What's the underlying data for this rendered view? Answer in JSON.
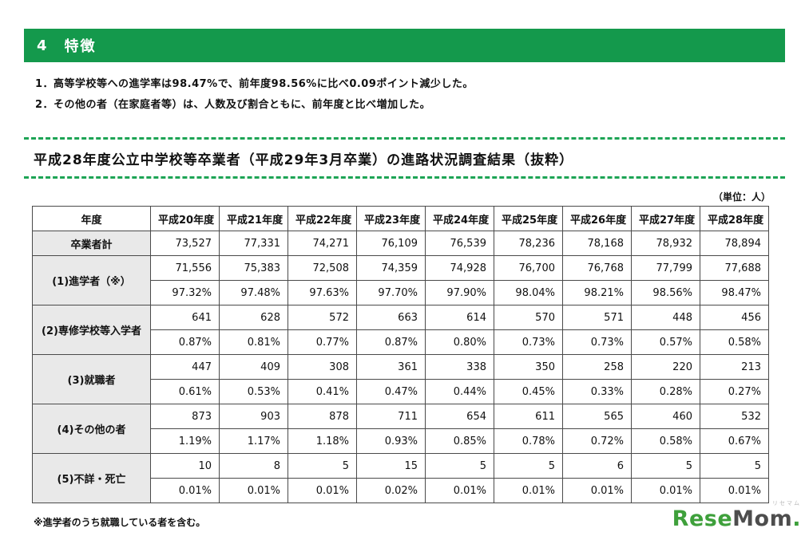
{
  "header": {
    "number": "4",
    "title": "特徴"
  },
  "notes": [
    "1．高等学校等への進学率は98.47%で、前年度98.56%に比べ0.09ポイント減少した。",
    "2．その他の者（在家庭者等）は、人数及び割合ともに、前年度と比べ増加した。"
  ],
  "section_title": "平成28年度公立中学校等卒業者（平成29年3月卒業）の進路状況調査結果（抜粋）",
  "unit_label": "（単位：人）",
  "table": {
    "corner_header": "年度",
    "columns": [
      "平成20年度",
      "平成21年度",
      "平成22年度",
      "平成23年度",
      "平成24年度",
      "平成25年度",
      "平成26年度",
      "平成27年度",
      "平成28年度"
    ],
    "rows": [
      {
        "label": "卒業者計",
        "lines": [
          [
            "73,527",
            "77,331",
            "74,271",
            "76,109",
            "76,539",
            "78,236",
            "78,168",
            "78,932",
            "78,894"
          ]
        ]
      },
      {
        "label": "(1)進学者（※）",
        "lines": [
          [
            "71,556",
            "75,383",
            "72,508",
            "74,359",
            "74,928",
            "76,700",
            "76,768",
            "77,799",
            "77,688"
          ],
          [
            "97.32%",
            "97.48%",
            "97.63%",
            "97.70%",
            "97.90%",
            "98.04%",
            "98.21%",
            "98.56%",
            "98.47%"
          ]
        ]
      },
      {
        "label": "(2)専修学校等入学者",
        "lines": [
          [
            "641",
            "628",
            "572",
            "663",
            "614",
            "570",
            "571",
            "448",
            "456"
          ],
          [
            "0.87%",
            "0.81%",
            "0.77%",
            "0.87%",
            "0.80%",
            "0.73%",
            "0.73%",
            "0.57%",
            "0.58%"
          ]
        ]
      },
      {
        "label": "(3)就職者",
        "lines": [
          [
            "447",
            "409",
            "308",
            "361",
            "338",
            "350",
            "258",
            "220",
            "213"
          ],
          [
            "0.61%",
            "0.53%",
            "0.41%",
            "0.47%",
            "0.44%",
            "0.45%",
            "0.33%",
            "0.28%",
            "0.27%"
          ]
        ]
      },
      {
        "label": "(4)その他の者",
        "lines": [
          [
            "873",
            "903",
            "878",
            "711",
            "654",
            "611",
            "565",
            "460",
            "532"
          ],
          [
            "1.19%",
            "1.17%",
            "1.18%",
            "0.93%",
            "0.85%",
            "0.78%",
            "0.72%",
            "0.58%",
            "0.67%"
          ]
        ]
      },
      {
        "label": "(5)不詳・死亡",
        "lines": [
          [
            "10",
            "8",
            "5",
            "15",
            "5",
            "5",
            "6",
            "5",
            "5"
          ],
          [
            "0.01%",
            "0.01%",
            "0.01%",
            "0.02%",
            "0.01%",
            "0.01%",
            "0.01%",
            "0.01%",
            "0.01%"
          ]
        ]
      }
    ]
  },
  "footnote": "※進学者のうち就職している者を含む。",
  "logo": {
    "part1": "Rese",
    "part2": "Mom",
    "dot": ".",
    "small": "リセマム"
  },
  "colors": {
    "header_green": "#14994c",
    "dash_green": "#1da455",
    "label_bg": "#e9e9e9",
    "border": "#4a4a4a",
    "logo_green": "#3ea03b",
    "logo_dark": "#4d4d4d"
  }
}
